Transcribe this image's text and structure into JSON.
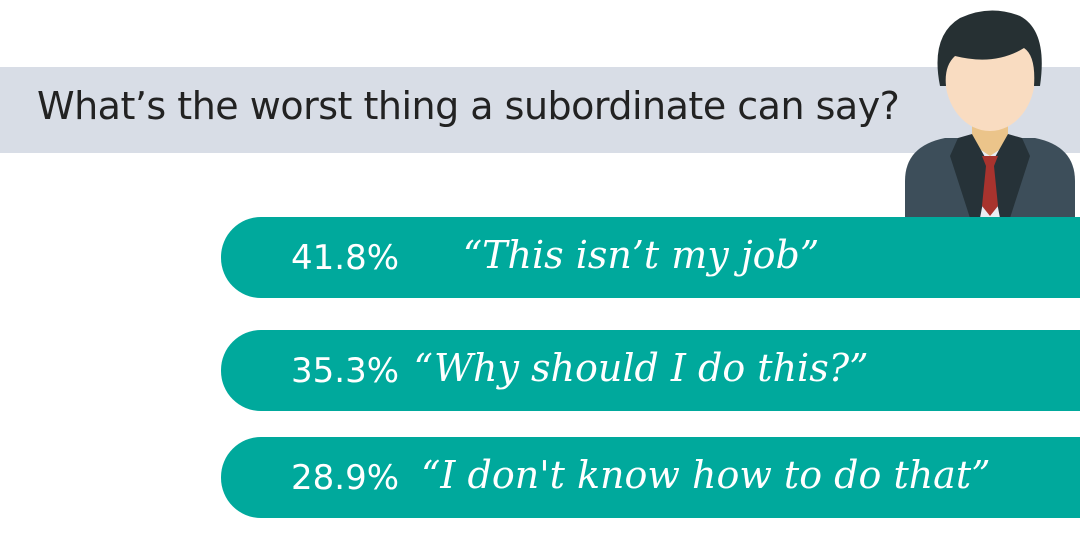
{
  "title": "What’s the worst thing a subordinate can say?",
  "colors": {
    "band": "#d8dde6",
    "bar": "#00a99c",
    "text": "#222222"
  },
  "icon": "businessman-avatar-icon",
  "responses": [
    {
      "percent": "41.8%",
      "quote": "“This isn’t my job”"
    },
    {
      "percent": "35.3%",
      "quote": "“Why should I do this?”"
    },
    {
      "percent": "28.9%",
      "quote": "“I don't know how to do that”"
    }
  ]
}
